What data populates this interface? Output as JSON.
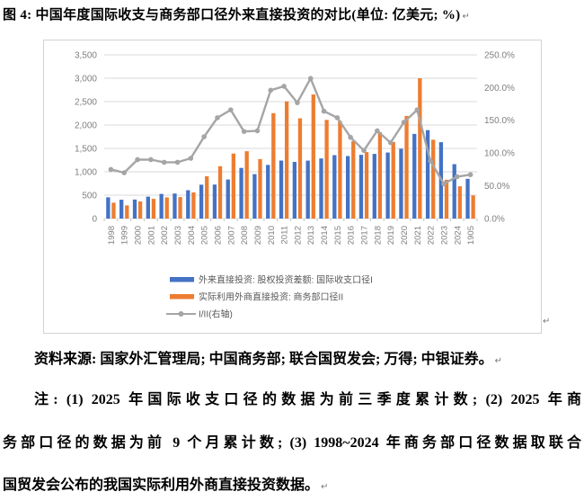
{
  "title": {
    "text": "图 4: 中国年度国际收支与商务部口径外来直接投资的对比(单位: 亿美元; %)"
  },
  "marks": {
    "para": "↵"
  },
  "chart_data": {
    "type": "bar+line",
    "title": "",
    "categories": [
      "1998",
      "1999",
      "2000",
      "2001",
      "2002",
      "2003",
      "2004",
      "2005",
      "2006",
      "2007",
      "2008",
      "2009",
      "2010",
      "2011",
      "2012",
      "2013",
      "2014",
      "2015",
      "2016",
      "2017",
      "2018",
      "2019",
      "2020",
      "2021",
      "2022",
      "2023",
      "2024",
      "1905"
    ],
    "series": [
      {
        "name": "外来直接投资: 股权投资差额: 国际收支口径I",
        "color": "#4472C4",
        "axis": "left",
        "values": [
          455,
          403,
          407,
          469,
          527,
          535,
          606,
          724,
          727,
          835,
          1083,
          950,
          1147,
          1240,
          1211,
          1239,
          1285,
          1356,
          1337,
          1363,
          1383,
          1412,
          1493,
          1810,
          1891,
          1633,
          1163,
          850
        ]
      },
      {
        "name": "实际利用外商直接投资: 商务部口径II",
        "color": "#ED7D31",
        "axis": "left",
        "values": [
          340,
          282,
          366,
          421,
          453,
          460,
          560,
          905,
          1120,
          1390,
          1440,
          1272,
          2254,
          2505,
          2143,
          2653,
          2110,
          2089,
          1655,
          1421,
          1848,
          1638,
          2195,
          3000,
          1686,
          830,
          690,
          495
        ]
      }
    ],
    "line": {
      "name": "I/II(右轴)",
      "color": "#A5A5A5",
      "axis": "right",
      "values": [
        75,
        70,
        90,
        90,
        86,
        86,
        92,
        125,
        154,
        166,
        133,
        134,
        196,
        202,
        177,
        214,
        164,
        154,
        124,
        104,
        134,
        116,
        147,
        166,
        88,
        53,
        64,
        67
      ]
    },
    "left_axis": {
      "max": 3500,
      "ticks": [
        {
          "v": 0,
          "label": "0"
        },
        {
          "v": 500,
          "label": "500"
        },
        {
          "v": 1000,
          "label": "1,000"
        },
        {
          "v": 1500,
          "label": "1,500"
        },
        {
          "v": 2000,
          "label": "2,000"
        },
        {
          "v": 2500,
          "label": "2,500"
        },
        {
          "v": 3000,
          "label": "3,000"
        },
        {
          "v": 3500,
          "label": "3,500"
        }
      ]
    },
    "right_axis": {
      "max": 250,
      "ticks": [
        {
          "v": 0,
          "label": "0.0%"
        },
        {
          "v": 50,
          "label": "50.0%"
        },
        {
          "v": 100,
          "label": "100.0%"
        },
        {
          "v": 150,
          "label": "150.0%"
        },
        {
          "v": 200,
          "label": "200.0%"
        },
        {
          "v": 250,
          "label": "250.0%"
        }
      ]
    },
    "grid": true,
    "legend_position": "bottom-left-inside",
    "grid_color": "#D9D9D9",
    "tick_label_color": "#7F7F7F",
    "legend_text_color": "#595959"
  },
  "source_line": "资料来源: 国家外汇管理局; 中国商务部; 联合国贸发会; 万得; 中银证券。",
  "notes_lines": [
    "注: (1) 2025 年国际收支口径的数据为前三季度累计数; (2) 2025 年商",
    "务部口径的数据为前 9 个月累计数; (3) 1998~2024 年商务部口径数据取联合",
    "国贸发会公布的我国实际利用外商直接投资数据。"
  ]
}
